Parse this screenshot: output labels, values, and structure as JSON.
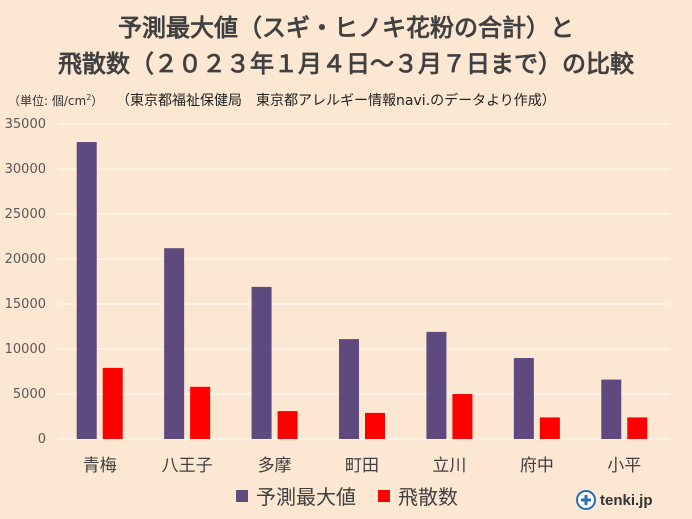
{
  "chart_data": {
    "type": "bar",
    "title_line1": "予測最大値（スギ・ヒノキ花粉の合計）と",
    "title_line2": "飛散数（２０２３年１月４日〜３月７日まで）の比較",
    "unit_label_prefix": "（単位: 個/cm",
    "unit_label_sup": "2",
    "unit_label_suffix": "）",
    "source_note": "（東京都福祉保健局　東京都アレルギー情報navi.のデータより作成）",
    "categories": [
      "青梅",
      "八王子",
      "多摩",
      "町田",
      "立川",
      "府中",
      "小平"
    ],
    "series": [
      {
        "name": "予測最大値",
        "color": "#5e4a7e",
        "values": [
          33000,
          21200,
          16900,
          11100,
          11900,
          9000,
          6600
        ]
      },
      {
        "name": "飛散数",
        "color": "#ff0000",
        "values": [
          7900,
          5800,
          3100,
          2900,
          5000,
          2400,
          2400
        ]
      }
    ],
    "ylim": [
      0,
      35000
    ],
    "yticks": [
      0,
      5000,
      10000,
      15000,
      20000,
      25000,
      30000,
      35000
    ],
    "grid": true,
    "legend_position": "bottom"
  },
  "logo": {
    "text": "tenki.jp",
    "icon": "tenki-logo-icon"
  }
}
